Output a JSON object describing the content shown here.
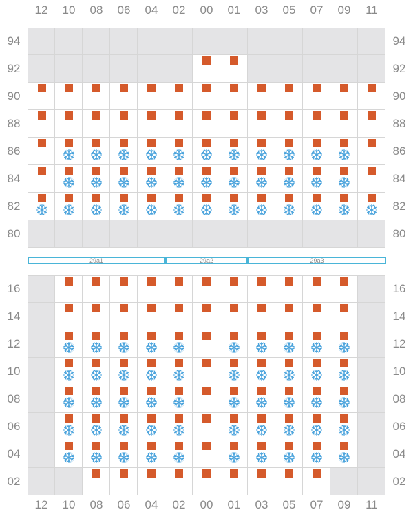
{
  "columns": [
    "12",
    "10",
    "08",
    "06",
    "04",
    "02",
    "00",
    "01",
    "03",
    "05",
    "07",
    "09",
    "11"
  ],
  "upper": {
    "rows": [
      {
        "label": "94",
        "cells": [
          "e",
          "e",
          "e",
          "e",
          "e",
          "e",
          "e",
          "e",
          "e",
          "e",
          "e",
          "e",
          "e"
        ]
      },
      {
        "label": "92",
        "cells": [
          "e",
          "e",
          "e",
          "e",
          "e",
          "e",
          "c",
          "c",
          "e",
          "e",
          "e",
          "e",
          "e"
        ]
      },
      {
        "label": "90",
        "cells": [
          "c",
          "c",
          "c",
          "c",
          "c",
          "c",
          "c",
          "c",
          "c",
          "c",
          "c",
          "c",
          "c"
        ]
      },
      {
        "label": "88",
        "cells": [
          "c",
          "c",
          "c",
          "c",
          "c",
          "c",
          "c",
          "c",
          "c",
          "c",
          "c",
          "c",
          "c"
        ]
      },
      {
        "label": "86",
        "cells": [
          "c",
          "r",
          "r",
          "r",
          "r",
          "r",
          "r",
          "r",
          "r",
          "r",
          "r",
          "r",
          "c"
        ]
      },
      {
        "label": "84",
        "cells": [
          "c",
          "r",
          "r",
          "r",
          "r",
          "r",
          "r",
          "r",
          "r",
          "r",
          "r",
          "r",
          "c"
        ]
      },
      {
        "label": "82",
        "cells": [
          "r",
          "r",
          "r",
          "r",
          "r",
          "r",
          "r",
          "r",
          "r",
          "r",
          "r",
          "r",
          "r"
        ]
      },
      {
        "label": "80",
        "cells": [
          "e",
          "e",
          "e",
          "e",
          "e",
          "e",
          "e",
          "e",
          "e",
          "e",
          "e",
          "e",
          "e"
        ]
      }
    ]
  },
  "hatches": [
    {
      "label": "29a1",
      "start_col": 0,
      "span": 5
    },
    {
      "label": "29a2",
      "start_col": 5,
      "span": 3
    },
    {
      "label": "29a3",
      "start_col": 8,
      "span": 5
    }
  ],
  "lower": {
    "rows": [
      {
        "label": "16",
        "cells": [
          "e",
          "c",
          "c",
          "c",
          "c",
          "c",
          "c",
          "c",
          "c",
          "c",
          "c",
          "c",
          "e"
        ]
      },
      {
        "label": "14",
        "cells": [
          "e",
          "c",
          "c",
          "c",
          "c",
          "c",
          "c",
          "c",
          "c",
          "c",
          "c",
          "c",
          "e"
        ]
      },
      {
        "label": "12",
        "cells": [
          "e",
          "r",
          "r",
          "r",
          "r",
          "r",
          "c",
          "r",
          "r",
          "r",
          "r",
          "r",
          "e"
        ]
      },
      {
        "label": "10",
        "cells": [
          "e",
          "r",
          "r",
          "r",
          "r",
          "r",
          "c",
          "r",
          "r",
          "r",
          "r",
          "r",
          "e"
        ]
      },
      {
        "label": "08",
        "cells": [
          "e",
          "r",
          "r",
          "r",
          "r",
          "r",
          "c",
          "r",
          "r",
          "r",
          "r",
          "r",
          "e"
        ]
      },
      {
        "label": "06",
        "cells": [
          "e",
          "r",
          "r",
          "r",
          "r",
          "r",
          "c",
          "r",
          "r",
          "r",
          "r",
          "r",
          "e"
        ]
      },
      {
        "label": "04",
        "cells": [
          "e",
          "r",
          "r",
          "r",
          "r",
          "r",
          "c",
          "r",
          "r",
          "r",
          "r",
          "r",
          "e"
        ]
      },
      {
        "label": "02",
        "cells": [
          "e",
          "e",
          "c",
          "c",
          "c",
          "c",
          "c",
          "c",
          "c",
          "c",
          "c",
          "e",
          "e"
        ]
      }
    ]
  },
  "legend_codes": {
    "e": "empty slot",
    "c": "container",
    "r": "reefer container"
  },
  "colors": {
    "container": "#d55a2b",
    "reefer": "#4aa3dc",
    "empty": "#e4e4e6",
    "hatch": "#4ab5d8",
    "grid": "#d6d6d6"
  },
  "icons": {
    "reefer": "snowflake-icon",
    "container": "container-square"
  }
}
